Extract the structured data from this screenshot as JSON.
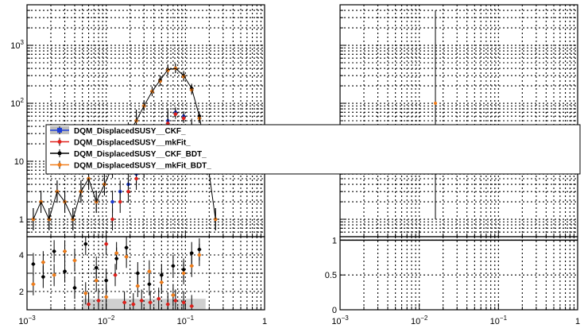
{
  "chart_data": [
    {
      "type": "scatter",
      "panel": "left-top",
      "x_scale": "log",
      "y_scale": "log",
      "xlim": [
        0.001,
        1
      ],
      "ylim": [
        0.5,
        5000
      ],
      "grid": true,
      "y_tick_labels": [
        {
          "value": 1,
          "base": "1",
          "exp": ""
        },
        {
          "value": 10,
          "base": "10",
          "exp": ""
        },
        {
          "value": 100,
          "base": "10",
          "exp": "2"
        },
        {
          "value": 1000,
          "base": "10",
          "exp": "3"
        }
      ],
      "legend": {
        "placement": "overlapping both panels, center-left",
        "entries": [
          {
            "label": "DQM_DisplacedSUSY__CKF_",
            "color": "#1f3fd6",
            "marker": "square",
            "band": true
          },
          {
            "label": "DQM_DisplacedSUSY__mkFit_",
            "color": "#e0201b",
            "marker": "circle"
          },
          {
            "label": "DQM_DisplacedSUSY__CKF_BDT_",
            "color": "#000000",
            "marker": "circle"
          },
          {
            "label": "DQM_DisplacedSUSY__mkFit_BDT_",
            "color": "#f07d1a",
            "marker": "circle"
          }
        ]
      },
      "series": [
        {
          "name": "DQM_DisplacedSUSY__CKF_BDT_",
          "color": "#000000",
          "x": [
            0.0012,
            0.0015,
            0.0019,
            0.0024,
            0.003,
            0.0038,
            0.0048,
            0.006,
            0.0075,
            0.0095,
            0.012,
            0.015,
            0.019,
            0.024,
            0.03,
            0.038,
            0.048,
            0.06,
            0.075,
            0.095,
            0.12,
            0.15,
            0.19,
            0.24
          ],
          "y": [
            1,
            2,
            1,
            3,
            2,
            1,
            3,
            5,
            2,
            4,
            8,
            18,
            30,
            50,
            90,
            160,
            250,
            380,
            400,
            300,
            180,
            60,
            10,
            1
          ]
        },
        {
          "name": "DQM_DisplacedSUSY__mkFit_BDT_",
          "color": "#f07d1a",
          "x": [
            0.0012,
            0.0015,
            0.0019,
            0.0024,
            0.003,
            0.0038,
            0.0048,
            0.006,
            0.0075,
            0.0095,
            0.012,
            0.015,
            0.019,
            0.024,
            0.03,
            0.038,
            0.048,
            0.06,
            0.075,
            0.095,
            0.12,
            0.15,
            0.19,
            0.24
          ],
          "y": [
            1,
            2,
            1,
            3,
            2,
            1,
            3,
            5,
            2,
            4,
            8,
            18,
            30,
            50,
            90,
            160,
            240,
            370,
            400,
            290,
            170,
            55,
            9,
            1
          ]
        },
        {
          "name": "DQM_DisplacedSUSY__CKF_",
          "color": "#1f3fd6",
          "x": [
            0.012,
            0.015,
            0.019,
            0.024,
            0.03,
            0.038,
            0.048,
            0.06,
            0.075,
            0.095,
            0.12,
            0.15
          ],
          "y": [
            2,
            3,
            4,
            6,
            10,
            16,
            25,
            50,
            70,
            60,
            35,
            12
          ]
        },
        {
          "name": "DQM_DisplacedSUSY__mkFit_",
          "color": "#e0201b",
          "x": [
            0.012,
            0.015,
            0.019,
            0.024,
            0.03,
            0.038,
            0.048,
            0.06,
            0.075,
            0.095,
            0.12,
            0.15
          ],
          "y": [
            1,
            2,
            3,
            5,
            8,
            14,
            22,
            45,
            65,
            55,
            30,
            10
          ]
        }
      ]
    },
    {
      "type": "scatter",
      "panel": "left-bottom (ratio)",
      "x_scale": "log",
      "xlim": [
        0.001,
        1
      ],
      "ylim": [
        1,
        5
      ],
      "grid": true,
      "x_tick_labels": [
        {
          "value": 0.001,
          "base": "10",
          "exp": "−3"
        },
        {
          "value": 0.01,
          "base": "10",
          "exp": "−2"
        },
        {
          "value": 0.1,
          "base": "10",
          "exp": "−1"
        },
        {
          "value": 1,
          "base": "1",
          "exp": ""
        }
      ],
      "y_tick_labels": [
        {
          "value": 2,
          "label": "2"
        },
        {
          "value": 4,
          "label": "4"
        }
      ],
      "band": {
        "x_range": [
          0.005,
          0.18
        ],
        "y_range": [
          1.0,
          1.6
        ],
        "color": "#cfcfcf"
      },
      "series": [
        {
          "name": "DQM_DisplacedSUSY__CKF_BDT_",
          "color": "#000000",
          "x": [
            0.0012,
            0.0016,
            0.0022,
            0.003,
            0.004,
            0.0055,
            0.0075,
            0.01,
            0.0135,
            0.018,
            0.025,
            0.035,
            0.05,
            0.07,
            0.095,
            0.12,
            0.15
          ],
          "y": [
            3.5,
            2.8,
            4.2,
            3.1,
            2.2,
            4.6,
            3.3,
            2.6,
            3.8,
            4.4,
            3.0,
            2.4,
            2.9,
            3.4,
            3.2,
            4.1,
            4.3
          ]
        },
        {
          "name": "DQM_DisplacedSUSY__mkFit_BDT_",
          "color": "#f07d1a",
          "x": [
            0.0012,
            0.0016,
            0.0022,
            0.003,
            0.004,
            0.0055,
            0.0075,
            0.01,
            0.0135,
            0.018,
            0.025,
            0.035,
            0.05,
            0.07,
            0.095,
            0.12,
            0.15
          ],
          "y": [
            2.4,
            3.6,
            2.9,
            4.2,
            3.7,
            1.9,
            2.6,
            1.7,
            4.1,
            3.9,
            2.3,
            3.1,
            2.5,
            1.8,
            3.0,
            3.4,
            4.0
          ]
        },
        {
          "name": "DQM_DisplacedSUSY__mkFit_",
          "color": "#e0201b",
          "x": [
            0.006,
            0.008,
            0.01,
            0.013,
            0.017,
            0.022,
            0.028,
            0.036,
            0.046,
            0.06,
            0.075,
            0.095,
            0.12
          ],
          "y": [
            1.3,
            1.5,
            4.6,
            2.9,
            1.4,
            1.3,
            1.5,
            1.4,
            1.6,
            1.3,
            1.5,
            1.4,
            1.2
          ]
        }
      ]
    },
    {
      "type": "scatter",
      "panel": "right-top",
      "x_scale": "log",
      "y_scale": "log",
      "xlim": [
        0.001,
        1
      ],
      "ylim": [
        0.5,
        5000
      ],
      "grid": true,
      "series": [
        {
          "name": "point",
          "color": "#f07d1a",
          "x": [
            0.016
          ],
          "y": [
            100
          ],
          "err_low": 1,
          "err_high": 4000
        }
      ]
    },
    {
      "type": "scatter",
      "panel": "right-bottom (ratio)",
      "x_scale": "log",
      "xlim": [
        0.001,
        1
      ],
      "ylim": [
        0,
        1.05
      ],
      "grid": true,
      "x_tick_labels": [
        {
          "value": 0.001,
          "base": "10",
          "exp": "−3"
        },
        {
          "value": 0.01,
          "base": "10",
          "exp": "−2"
        },
        {
          "value": 0.1,
          "base": "10",
          "exp": "−1"
        },
        {
          "value": 1,
          "base": "1",
          "exp": ""
        }
      ],
      "y_tick_labels": [
        {
          "value": 0,
          "label": "0"
        },
        {
          "value": 0.5,
          "label": "0.5"
        },
        {
          "value": 1,
          "label": "1"
        }
      ],
      "series": []
    }
  ]
}
